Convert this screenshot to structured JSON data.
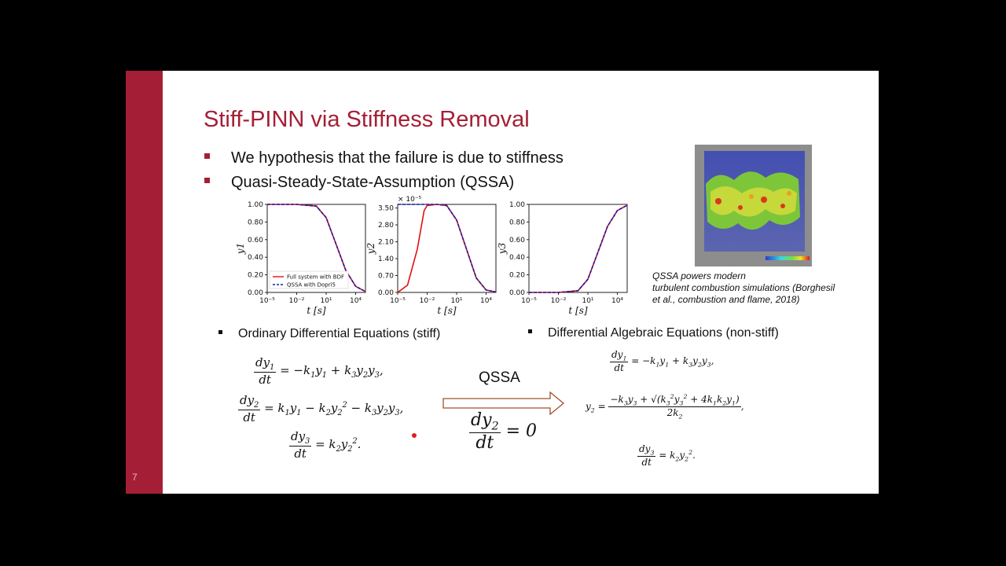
{
  "slide": {
    "number": "7",
    "title": "Stiff-PINN via Stiffness Removal",
    "bullets": [
      "We hypothesis that the failure is due to stiffness",
      "Quasi-Steady-State-Assumption (QSSA)"
    ],
    "sub_left": "Ordinary Differential Equations (stiff)",
    "sub_right": "Differential Algebraic Equations (non-stiff)",
    "qssa_label": "QSSA",
    "image_caption": [
      "QSSA powers modern",
      "turbulent combustion simulations (Borghesil",
      "et al., combustion and flame, 2018)"
    ],
    "image_icon": "combustion-simulation-image",
    "colors": {
      "accent": "#a41f35",
      "bdf_line": "#e01010",
      "qssa_line": "#1a1aaa"
    }
  },
  "chart_data": [
    {
      "type": "line",
      "xlabel": "t [s]",
      "ylabel": "y1",
      "xscale": "log",
      "xticks": [
        "10⁻⁵",
        "10⁻²",
        "10¹",
        "10⁴"
      ],
      "yticks": [
        "1.00",
        "0.80",
        "0.60",
        "0.40",
        "0.20",
        "0.00"
      ],
      "ylim": [
        0,
        1
      ],
      "legend": [
        "Full system with BDF",
        "QSSA with Dopri5"
      ],
      "legend_position": "lower-left",
      "series": [
        {
          "name": "Full system with BDF",
          "x": [
            1e-05,
            0.01,
            1,
            10,
            100,
            1000,
            10000,
            100000
          ],
          "values": [
            1.0,
            1.0,
            0.98,
            0.85,
            0.55,
            0.25,
            0.07,
            0.01
          ]
        },
        {
          "name": "QSSA with Dopri5",
          "x": [
            1e-05,
            0.01,
            1,
            10,
            100,
            1000,
            10000,
            100000
          ],
          "values": [
            1.0,
            1.0,
            0.98,
            0.85,
            0.55,
            0.25,
            0.07,
            0.01
          ]
        }
      ]
    },
    {
      "type": "line",
      "xlabel": "t [s]",
      "ylabel": "y2",
      "xscale": "log",
      "multiplier": "× 10⁻⁵",
      "xticks": [
        "10⁻⁵",
        "10⁻²",
        "10¹",
        "10⁴"
      ],
      "yticks": [
        "3.50",
        "2.80",
        "2.10",
        "1.40",
        "0.70",
        "0.00"
      ],
      "ylim": [
        0,
        3.65
      ],
      "series": [
        {
          "name": "Full system with BDF",
          "x": [
            1e-05,
            0.0001,
            0.001,
            0.005,
            0.01,
            0.1,
            1,
            10,
            100,
            1000,
            10000,
            100000
          ],
          "values": [
            0.0,
            0.3,
            1.8,
            3.4,
            3.6,
            3.65,
            3.6,
            3.0,
            1.8,
            0.6,
            0.1,
            0.02
          ]
        },
        {
          "name": "QSSA with Dopri5",
          "x": [
            1e-05,
            0.01,
            0.1,
            1,
            10,
            100,
            1000,
            10000,
            100000
          ],
          "values": [
            3.65,
            3.65,
            3.65,
            3.6,
            3.0,
            1.8,
            0.6,
            0.1,
            0.02
          ]
        }
      ]
    },
    {
      "type": "line",
      "xlabel": "t [s]",
      "ylabel": "y3",
      "xscale": "log",
      "xticks": [
        "10⁻⁵",
        "10⁻²",
        "10¹",
        "10⁴"
      ],
      "yticks": [
        "1.00",
        "0.80",
        "0.60",
        "0.40",
        "0.20",
        "0.00"
      ],
      "ylim": [
        0,
        1
      ],
      "series": [
        {
          "name": "Full system with BDF",
          "x": [
            1e-05,
            0.01,
            1,
            10,
            100,
            1000,
            10000,
            100000
          ],
          "values": [
            0.0,
            0.0,
            0.02,
            0.15,
            0.45,
            0.75,
            0.93,
            0.99
          ]
        },
        {
          "name": "QSSA with Dopri5",
          "x": [
            1e-05,
            0.01,
            1,
            10,
            100,
            1000,
            10000,
            100000
          ],
          "values": [
            0.0,
            0.0,
            0.02,
            0.15,
            0.45,
            0.75,
            0.93,
            0.99
          ]
        }
      ]
    }
  ]
}
